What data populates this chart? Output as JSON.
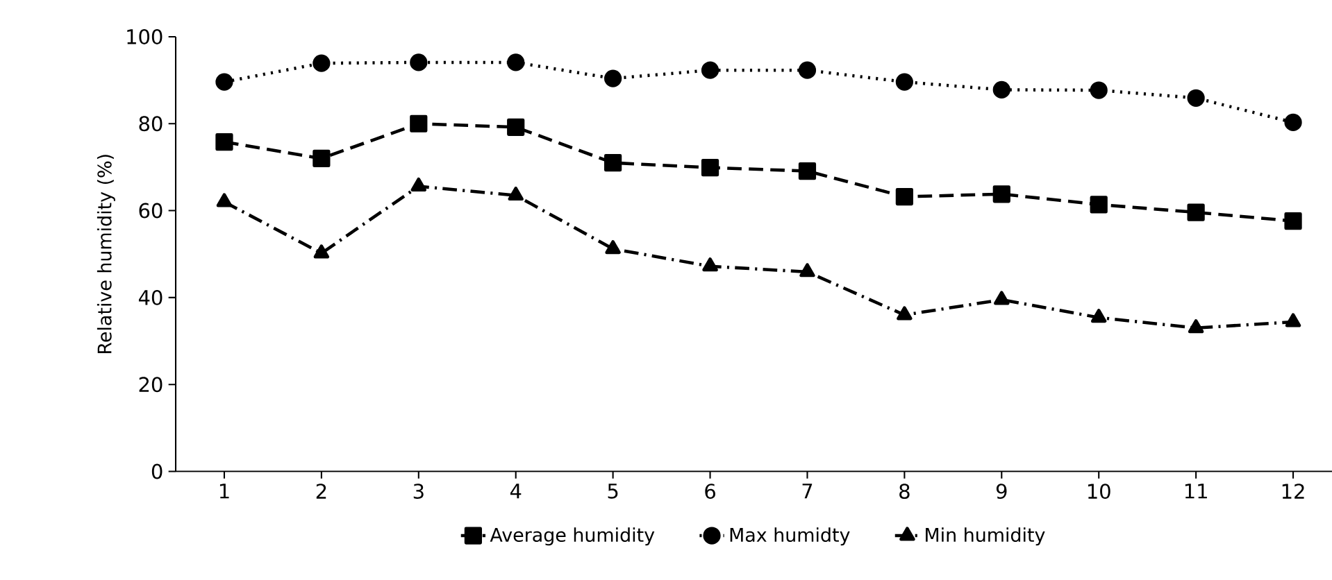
{
  "chart_data": {
    "type": "line",
    "ylabel": "Relative humidity (%)",
    "categories": [
      "1",
      "2",
      "3",
      "4",
      "5",
      "6",
      "7",
      "8",
      "9",
      "10",
      "11",
      "12"
    ],
    "ylim": [
      0,
      100
    ],
    "yticks": [
      0,
      20,
      40,
      60,
      80,
      100
    ],
    "legend": "bottom",
    "grid": false,
    "series": [
      {
        "name": "Average humidity",
        "color": "#000000",
        "marker": "square",
        "line_style": "dashed",
        "values": [
          75.8,
          72,
          80,
          79.2,
          71,
          69.9,
          69.1,
          63.2,
          63.8,
          61.4,
          59.6,
          57.6
        ]
      },
      {
        "name": "Max humidty",
        "color": "#000000",
        "marker": "circle",
        "line_style": "dotted",
        "values": [
          89.6,
          93.9,
          94.1,
          94.1,
          90.4,
          92.3,
          92.3,
          89.6,
          87.8,
          87.7,
          85.9,
          80.3
        ]
      },
      {
        "name": "Min humidity",
        "color": "#000000",
        "marker": "triangle",
        "line_style": "dashdotted",
        "values": [
          62,
          50.2,
          65.6,
          63.5,
          51.2,
          47.2,
          45.9,
          36,
          39.5,
          35.4,
          33,
          34.4
        ]
      }
    ]
  }
}
